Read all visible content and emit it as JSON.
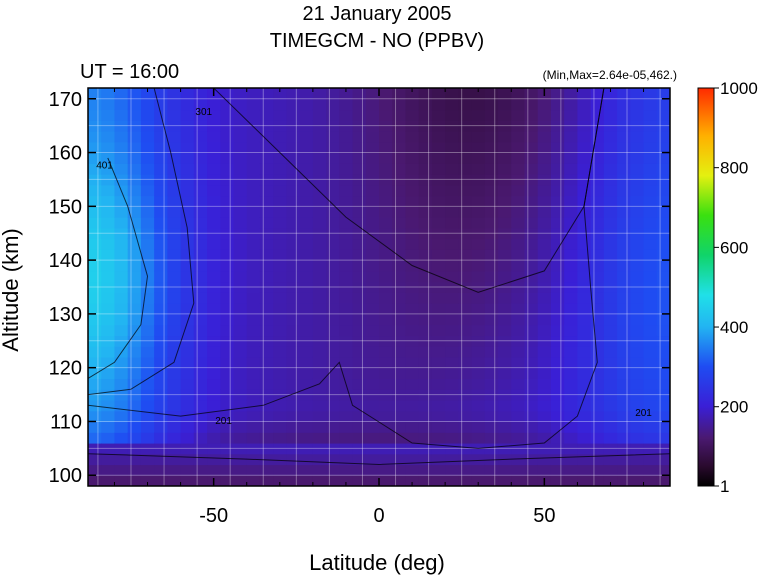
{
  "chart_data": {
    "type": "heatmap",
    "title": "21 January 2005",
    "subtitle": "TIMEGCM - NO (PPBV)",
    "time_label": "UT = 16:00",
    "minmax_label": "(Min,Max=2.64e-05,462.)",
    "xlabel": "Latitude (deg)",
    "ylabel": "Altitude (km)",
    "xlim": [
      -88,
      88
    ],
    "ylim": [
      98,
      172
    ],
    "x_ticks": [
      -50,
      0,
      50
    ],
    "y_ticks": [
      100,
      110,
      120,
      130,
      140,
      150,
      160,
      170
    ],
    "colorbar": {
      "min": 1,
      "max": 1000,
      "ticks": [
        1,
        200,
        400,
        600,
        800,
        1000
      ]
    },
    "contour_labels": [
      {
        "text": "401",
        "x": -83,
        "y": 157
      },
      {
        "text": "301",
        "x": -53,
        "y": 167
      },
      {
        "text": "201",
        "x": -47,
        "y": 109.5
      },
      {
        "text": "201",
        "x": 80,
        "y": 111
      }
    ],
    "grid": true
  }
}
